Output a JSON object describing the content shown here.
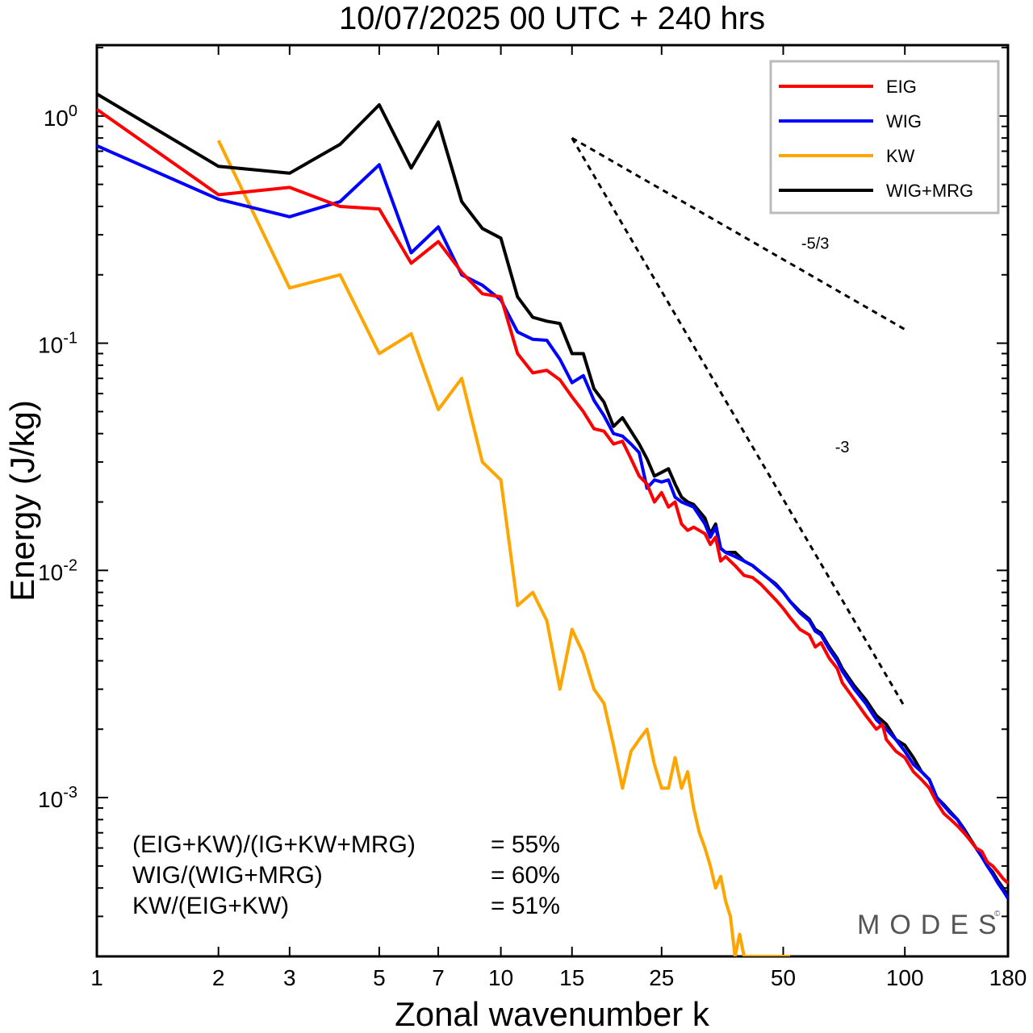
{
  "chart_data": {
    "type": "line",
    "title": "10/07/2025  00 UTC  + 240 hrs",
    "xlabel": "Zonal wavenumber k",
    "ylabel": "Energy (J/kg)",
    "xscale": "log",
    "yscale": "log",
    "xlim": [
      1,
      180
    ],
    "ylim": [
      0.0002,
      2.05
    ],
    "x_ticks": [
      1,
      2,
      3,
      5,
      7,
      10,
      15,
      25,
      50,
      100,
      180
    ],
    "x_tick_labels": [
      "1",
      "2",
      "3",
      "5",
      "7",
      "10",
      "15",
      "25",
      "50",
      "100",
      "180"
    ],
    "y_ticks": [
      {
        "value": 1,
        "base": "10",
        "exp": "0"
      },
      {
        "value": 0.1,
        "base": "10",
        "exp": "-1"
      },
      {
        "value": 0.01,
        "base": "10",
        "exp": "-2"
      },
      {
        "value": 0.001,
        "base": "10",
        "exp": "-3"
      }
    ],
    "legend_position": "top-right",
    "series": [
      {
        "name": "EIG",
        "color": "#ff0000",
        "points": [
          [
            1,
            1.07
          ],
          [
            2,
            0.45
          ],
          [
            3,
            0.485
          ],
          [
            4,
            0.4
          ],
          [
            5,
            0.39
          ],
          [
            6,
            0.225
          ],
          [
            7,
            0.28
          ],
          [
            8,
            0.205
          ],
          [
            9,
            0.165
          ],
          [
            10,
            0.16
          ],
          [
            11,
            0.09
          ],
          [
            12,
            0.074
          ],
          [
            13,
            0.076
          ],
          [
            14,
            0.069
          ],
          [
            15,
            0.058
          ],
          [
            16,
            0.05
          ],
          [
            17,
            0.042
          ],
          [
            18,
            0.041
          ],
          [
            19,
            0.036
          ],
          [
            20,
            0.037
          ],
          [
            21,
            0.031
          ],
          [
            22,
            0.026
          ],
          [
            23,
            0.024
          ],
          [
            24,
            0.02
          ],
          [
            25,
            0.022
          ],
          [
            26,
            0.019
          ],
          [
            27,
            0.02
          ],
          [
            28,
            0.016
          ],
          [
            29,
            0.015
          ],
          [
            30,
            0.0155
          ],
          [
            32,
            0.0145
          ],
          [
            33,
            0.013
          ],
          [
            34,
            0.014
          ],
          [
            35,
            0.011
          ],
          [
            36,
            0.0115
          ],
          [
            38,
            0.0105
          ],
          [
            40,
            0.0095
          ],
          [
            42,
            0.0093
          ],
          [
            44,
            0.0087
          ],
          [
            46,
            0.008
          ],
          [
            48,
            0.0074
          ],
          [
            50,
            0.0068
          ],
          [
            52,
            0.0062
          ],
          [
            55,
            0.0055
          ],
          [
            58,
            0.0052
          ],
          [
            60,
            0.0046
          ],
          [
            62,
            0.0048
          ],
          [
            65,
            0.0041
          ],
          [
            68,
            0.0037
          ],
          [
            70,
            0.0032
          ],
          [
            75,
            0.0027
          ],
          [
            80,
            0.0023
          ],
          [
            85,
            0.002
          ],
          [
            88,
            0.0021
          ],
          [
            90,
            0.0018
          ],
          [
            95,
            0.0016
          ],
          [
            100,
            0.0015
          ],
          [
            105,
            0.0013
          ],
          [
            110,
            0.0012
          ],
          [
            115,
            0.0011
          ],
          [
            120,
            0.00095
          ],
          [
            125,
            0.00085
          ],
          [
            130,
            0.0008
          ],
          [
            135,
            0.00075
          ],
          [
            140,
            0.0007
          ],
          [
            145,
            0.00065
          ],
          [
            150,
            0.0006
          ],
          [
            155,
            0.00058
          ],
          [
            160,
            0.00052
          ],
          [
            165,
            0.0005
          ],
          [
            170,
            0.00047
          ],
          [
            175,
            0.00044
          ],
          [
            180,
            0.00042
          ]
        ]
      },
      {
        "name": "WIG",
        "color": "#0000ff",
        "points": [
          [
            1,
            0.74
          ],
          [
            2,
            0.43
          ],
          [
            3,
            0.36
          ],
          [
            4,
            0.42
          ],
          [
            5,
            0.61
          ],
          [
            6,
            0.25
          ],
          [
            7,
            0.325
          ],
          [
            8,
            0.2
          ],
          [
            9,
            0.18
          ],
          [
            10,
            0.155
          ],
          [
            11,
            0.112
          ],
          [
            12,
            0.104
          ],
          [
            13,
            0.103
          ],
          [
            14,
            0.085
          ],
          [
            15,
            0.067
          ],
          [
            16,
            0.072
          ],
          [
            17,
            0.056
          ],
          [
            18,
            0.048
          ],
          [
            19,
            0.04
          ],
          [
            20,
            0.039
          ],
          [
            21,
            0.036
          ],
          [
            22,
            0.033
          ],
          [
            23,
            0.023
          ],
          [
            24,
            0.025
          ],
          [
            25,
            0.0245
          ],
          [
            26,
            0.025
          ],
          [
            27,
            0.021
          ],
          [
            28,
            0.02
          ],
          [
            29,
            0.0195
          ],
          [
            30,
            0.019
          ],
          [
            32,
            0.016
          ],
          [
            33,
            0.014
          ],
          [
            34,
            0.0155
          ],
          [
            35,
            0.0125
          ],
          [
            36,
            0.012
          ],
          [
            38,
            0.0115
          ],
          [
            40,
            0.011
          ],
          [
            42,
            0.0105
          ],
          [
            44,
            0.0098
          ],
          [
            46,
            0.0092
          ],
          [
            48,
            0.0086
          ],
          [
            50,
            0.008
          ],
          [
            52,
            0.0073
          ],
          [
            55,
            0.0065
          ],
          [
            58,
            0.006
          ],
          [
            60,
            0.0054
          ],
          [
            62,
            0.0052
          ],
          [
            65,
            0.0045
          ],
          [
            68,
            0.004
          ],
          [
            70,
            0.0036
          ],
          [
            75,
            0.003
          ],
          [
            80,
            0.0026
          ],
          [
            85,
            0.0022
          ],
          [
            90,
            0.002
          ],
          [
            95,
            0.0018
          ],
          [
            100,
            0.0016
          ],
          [
            105,
            0.0014
          ],
          [
            110,
            0.0013
          ],
          [
            115,
            0.0012
          ],
          [
            120,
            0.001
          ],
          [
            125,
            0.00092
          ],
          [
            130,
            0.00085
          ],
          [
            135,
            0.0008
          ],
          [
            140,
            0.00072
          ],
          [
            145,
            0.00065
          ],
          [
            150,
            0.0006
          ],
          [
            155,
            0.00055
          ],
          [
            160,
            0.0005
          ],
          [
            165,
            0.00046
          ],
          [
            170,
            0.00042
          ],
          [
            175,
            0.00039
          ],
          [
            180,
            0.00036
          ]
        ]
      },
      {
        "name": "KW",
        "color": "#ffa500",
        "points": [
          [
            2,
            0.78
          ],
          [
            3,
            0.175
          ],
          [
            4,
            0.2
          ],
          [
            5,
            0.09
          ],
          [
            6,
            0.11
          ],
          [
            7,
            0.051
          ],
          [
            8,
            0.07
          ],
          [
            9,
            0.03
          ],
          [
            10,
            0.025
          ],
          [
            11,
            0.007
          ],
          [
            12,
            0.008
          ],
          [
            13,
            0.006
          ],
          [
            14,
            0.003
          ],
          [
            15,
            0.0055
          ],
          [
            16,
            0.0043
          ],
          [
            17,
            0.003
          ],
          [
            18,
            0.0026
          ],
          [
            19,
            0.0017
          ],
          [
            20,
            0.0011
          ],
          [
            21,
            0.0016
          ],
          [
            22,
            0.0018
          ],
          [
            23,
            0.002
          ],
          [
            24,
            0.0014
          ],
          [
            25,
            0.0011
          ],
          [
            26,
            0.0011
          ],
          [
            27,
            0.0015
          ],
          [
            28,
            0.0011
          ],
          [
            29,
            0.0013
          ],
          [
            30,
            0.0009
          ],
          [
            31,
            0.0007
          ],
          [
            32,
            0.0006
          ],
          [
            33,
            0.0005
          ],
          [
            34,
            0.0004
          ],
          [
            35,
            0.00045
          ],
          [
            36,
            0.00035
          ],
          [
            37,
            0.0003
          ],
          [
            38,
            0.0002
          ],
          [
            39,
            0.00025
          ],
          [
            40,
            0.0002
          ],
          [
            42,
            0.0002
          ],
          [
            44,
            0.0002
          ],
          [
            46,
            0.0002
          ],
          [
            48,
            0.0002
          ],
          [
            50,
            0.0002
          ],
          [
            52,
            0.0002
          ]
        ]
      },
      {
        "name": "WIG+MRG",
        "color": "#000000",
        "points": [
          [
            1,
            1.25
          ],
          [
            2,
            0.6
          ],
          [
            3,
            0.56
          ],
          [
            4,
            0.75
          ],
          [
            5,
            1.12
          ],
          [
            6,
            0.59
          ],
          [
            7,
            0.94
          ],
          [
            8,
            0.42
          ],
          [
            9,
            0.32
          ],
          [
            10,
            0.29
          ],
          [
            11,
            0.16
          ],
          [
            12,
            0.13
          ],
          [
            13,
            0.125
          ],
          [
            14,
            0.122
          ],
          [
            15,
            0.09
          ],
          [
            16,
            0.09
          ],
          [
            17,
            0.063
          ],
          [
            18,
            0.055
          ],
          [
            19,
            0.043
          ],
          [
            20,
            0.047
          ],
          [
            21,
            0.041
          ],
          [
            22,
            0.036
          ],
          [
            23,
            0.031
          ],
          [
            24,
            0.026
          ],
          [
            25,
            0.027
          ],
          [
            26,
            0.028
          ],
          [
            27,
            0.024
          ],
          [
            28,
            0.021
          ],
          [
            29,
            0.02
          ],
          [
            30,
            0.0195
          ],
          [
            32,
            0.017
          ],
          [
            33,
            0.0145
          ],
          [
            34,
            0.016
          ],
          [
            35,
            0.0125
          ],
          [
            36,
            0.012
          ],
          [
            38,
            0.012
          ],
          [
            40,
            0.011
          ],
          [
            42,
            0.0105
          ],
          [
            44,
            0.0098
          ],
          [
            46,
            0.0092
          ],
          [
            48,
            0.0087
          ],
          [
            50,
            0.008
          ],
          [
            52,
            0.0073
          ],
          [
            55,
            0.0066
          ],
          [
            58,
            0.0061
          ],
          [
            60,
            0.0055
          ],
          [
            62,
            0.0053
          ],
          [
            65,
            0.0046
          ],
          [
            68,
            0.0041
          ],
          [
            70,
            0.0037
          ],
          [
            75,
            0.0031
          ],
          [
            80,
            0.0027
          ],
          [
            85,
            0.0023
          ],
          [
            90,
            0.0021
          ],
          [
            95,
            0.0018
          ],
          [
            100,
            0.0017
          ],
          [
            105,
            0.0015
          ],
          [
            110,
            0.0013
          ],
          [
            115,
            0.0012
          ],
          [
            120,
            0.001
          ],
          [
            125,
            0.00093
          ],
          [
            130,
            0.00086
          ],
          [
            135,
            0.0008
          ],
          [
            140,
            0.00073
          ],
          [
            145,
            0.00066
          ],
          [
            150,
            0.0006
          ],
          [
            155,
            0.00055
          ],
          [
            160,
            0.0005
          ],
          [
            165,
            0.00047
          ],
          [
            170,
            0.00043
          ],
          [
            175,
            0.0004
          ],
          [
            180,
            0.00037
          ]
        ]
      }
    ],
    "reference_slopes": [
      {
        "label": "-5/3",
        "from": [
          15,
          0.8
        ],
        "to": [
          100,
          0.115
        ],
        "label_at": [
          60,
          0.26
        ]
      },
      {
        "label": "-3",
        "from": [
          15,
          0.8
        ],
        "to": [
          100,
          0.0025
        ],
        "label_at": [
          70,
          0.033
        ]
      }
    ],
    "annotations": [
      {
        "label": "(EIG+KW)/(IG+KW+MRG)",
        "value": "= 55%"
      },
      {
        "label": "WIG/(WIG+MRG)",
        "value": "= 60%"
      },
      {
        "label": "KW/(EIG+KW)",
        "value": "= 51%"
      }
    ],
    "watermark": "MODES",
    "watermark_mark": "©",
    "grid": false
  }
}
